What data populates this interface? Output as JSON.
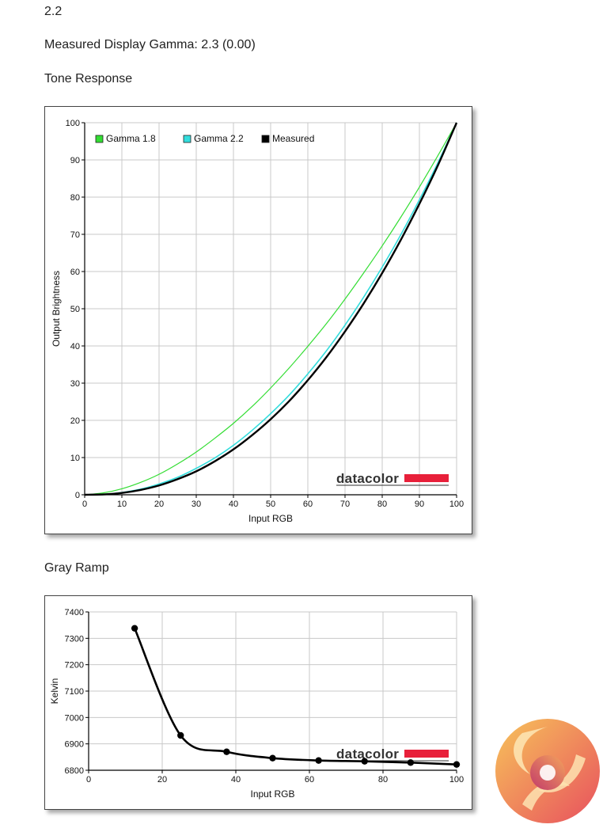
{
  "page": {
    "heading_value": "2.2",
    "measured_line": "Measured Display Gamma: 2.3 (0.00)",
    "tone_heading": "Tone Response",
    "gray_heading": "Gray Ramp"
  },
  "watermark_text": "datacolor",
  "colors": {
    "gamma18": "#33dd33",
    "gamma22": "#33dddd",
    "measured": "#000000",
    "grid": "#c8c8c8",
    "datacolor_red": "#e8203a"
  },
  "chart_data": [
    {
      "id": "tone",
      "type": "line",
      "xlabel": "Input RGB",
      "ylabel": "Output Brightness",
      "xlim": [
        0,
        100
      ],
      "ylim": [
        0,
        100
      ],
      "xticks": [
        0,
        10,
        20,
        30,
        40,
        50,
        60,
        70,
        80,
        90,
        100
      ],
      "yticks": [
        0,
        10,
        20,
        30,
        40,
        50,
        60,
        70,
        80,
        90,
        100
      ],
      "grid": true,
      "legend_position": "top-left",
      "x": [
        0,
        5,
        10,
        15,
        20,
        25,
        30,
        35,
        40,
        45,
        50,
        55,
        60,
        65,
        70,
        75,
        80,
        85,
        90,
        95,
        100
      ],
      "series": [
        {
          "name": "Gamma 1.8",
          "color": "#33dd33",
          "values": [
            0,
            0.5,
            1.6,
            3.3,
            5.5,
            8.3,
            11.5,
            15.2,
            19.2,
            23.7,
            28.7,
            34.1,
            39.9,
            46.0,
            52.6,
            59.6,
            66.9,
            74.6,
            82.7,
            91.2,
            100
          ]
        },
        {
          "name": "Gamma 2.2",
          "color": "#33dddd",
          "values": [
            0,
            0.1,
            0.6,
            1.5,
            2.9,
            4.7,
            7.1,
            9.9,
            13.3,
            17.3,
            21.8,
            26.8,
            32.5,
            38.7,
            45.6,
            53.1,
            61.2,
            69.9,
            79.3,
            89.3,
            100
          ]
        },
        {
          "name": "Measured",
          "color": "#000000",
          "values": [
            0,
            0.1,
            0.5,
            1.3,
            2.5,
            4.2,
            6.3,
            9.0,
            12.2,
            16.0,
            20.3,
            25.2,
            30.8,
            37.0,
            43.9,
            51.4,
            59.6,
            68.5,
            78.2,
            88.6,
            100
          ]
        }
      ]
    },
    {
      "id": "gray",
      "type": "line",
      "xlabel": "Input RGB",
      "ylabel": "Kelvin",
      "xlim": [
        0,
        100
      ],
      "ylim": [
        6800,
        7400
      ],
      "xticks": [
        0,
        20,
        40,
        60,
        80,
        100
      ],
      "yticks": [
        6800,
        6900,
        7000,
        7100,
        7200,
        7300,
        7400
      ],
      "grid": true,
      "series": [
        {
          "name": "",
          "color": "#000000",
          "x": [
            12.5,
            25,
            37.5,
            50,
            62.5,
            75,
            87.5,
            100
          ],
          "values": [
            7338,
            6932,
            6870,
            6846,
            6837,
            6834,
            6829,
            6822
          ]
        }
      ]
    }
  ]
}
